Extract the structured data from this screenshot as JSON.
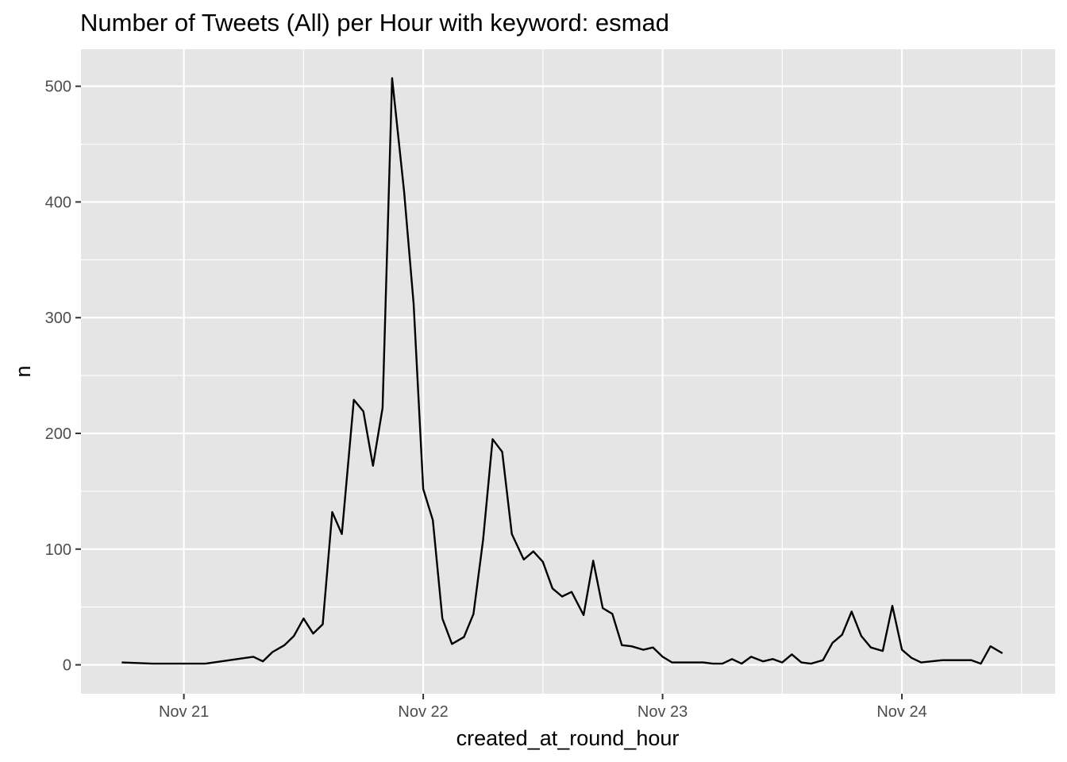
{
  "chart_data": {
    "type": "line",
    "title": "Number of Tweets (All) per Hour with keyword: esmad",
    "xlabel": "created_at_round_hour",
    "ylabel": "n",
    "x_tick_labels": [
      "Nov 21",
      "Nov 22",
      "Nov 23",
      "Nov 24"
    ],
    "x_ticks_days": [
      21,
      22,
      23,
      24
    ],
    "y_ticks": [
      0,
      100,
      200,
      300,
      400,
      500
    ],
    "xlim_days": [
      20.57,
      24.64
    ],
    "ylim": [
      -25,
      532
    ],
    "grid": true,
    "legend": "none",
    "series": [
      {
        "color": "#000000",
        "x_days": [
          20.74,
          20.87,
          21.09,
          21.29,
          21.33,
          21.37,
          21.42,
          21.46,
          21.5,
          21.54,
          21.58,
          21.62,
          21.66,
          21.71,
          21.75,
          21.79,
          21.83,
          21.87,
          21.92,
          21.96,
          22.0,
          22.04,
          22.08,
          22.12,
          22.17,
          22.21,
          22.25,
          22.29,
          22.33,
          22.37,
          22.42,
          22.46,
          22.5,
          22.54,
          22.58,
          22.62,
          22.67,
          22.71,
          22.75,
          22.79,
          22.83,
          22.87,
          22.92,
          22.96,
          23.0,
          23.04,
          23.17,
          23.21,
          23.25,
          23.29,
          23.33,
          23.37,
          23.42,
          23.46,
          23.5,
          23.54,
          23.58,
          23.62,
          23.67,
          23.71,
          23.75,
          23.79,
          23.83,
          23.87,
          23.92,
          23.96,
          24.0,
          24.04,
          24.08,
          24.17,
          24.29,
          24.33,
          24.37,
          24.42
        ],
        "values": [
          2,
          1,
          1,
          7,
          3,
          11,
          17,
          25,
          40,
          27,
          35,
          132,
          113,
          229,
          219,
          172,
          222,
          507,
          409,
          312,
          152,
          125,
          40,
          18,
          24,
          44,
          108,
          195,
          184,
          113,
          91,
          98,
          89,
          66,
          59,
          63,
          43,
          90,
          49,
          44,
          17,
          16,
          13,
          15,
          7,
          2,
          2,
          1,
          1,
          5,
          1,
          7,
          3,
          5,
          2,
          9,
          2,
          1,
          4,
          19,
          26,
          46,
          25,
          15,
          12,
          51,
          13,
          6,
          2,
          4,
          4,
          1,
          16,
          10
        ]
      }
    ]
  }
}
